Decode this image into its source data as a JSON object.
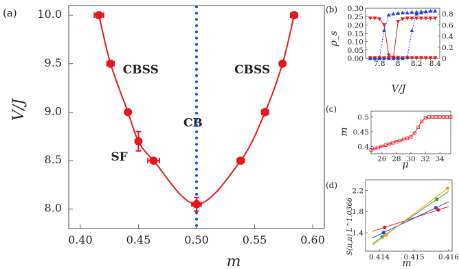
{
  "chart_data": [
    {
      "panel": "(a)",
      "type": "scatter",
      "xlabel": "m",
      "ylabel": "V/J",
      "xlim": [
        0.39,
        0.61
      ],
      "ylim": [
        7.8,
        10.1
      ],
      "xticks": [
        "0.40",
        "0.45",
        "0.50",
        "0.55",
        "0.60"
      ],
      "xtick_values": [
        0.4,
        0.45,
        0.5,
        0.55,
        0.6
      ],
      "yticks": [
        "8.0",
        "8.5",
        "9.0",
        "9.5",
        "10.0"
      ],
      "ytick_values": [
        8.0,
        8.5,
        9.0,
        9.5,
        10.0
      ],
      "regions": [
        {
          "label": "CBSS",
          "x": 0.452,
          "y": 9.4
        },
        {
          "label": "CBSS",
          "x": 0.548,
          "y": 9.4
        },
        {
          "label": "CB",
          "x": 0.497,
          "y": 8.85
        },
        {
          "label": "SF",
          "x": 0.4335,
          "y": 8.5
        }
      ],
      "vertical_line": {
        "x": 0.5,
        "style": "dotted",
        "color": "#1f4fd8"
      },
      "series": [
        {
          "color": "#e8161c",
          "points": [
            {
              "x": 0.416,
              "y": 10.0,
              "xerr": 0.004,
              "yerr": 0
            },
            {
              "x": 0.426,
              "y": 9.5,
              "xerr": 0.003,
              "yerr": 0
            },
            {
              "x": 0.441,
              "y": 9.0,
              "xerr": 0.002,
              "yerr": 0
            },
            {
              "x": 0.45,
              "y": 8.7,
              "xerr": 0.001,
              "yerr": 0.1
            },
            {
              "x": 0.463,
              "y": 8.5,
              "xerr": 0.005,
              "yerr": 0
            },
            {
              "x": 0.5,
              "y": 8.05,
              "xerr": 0.004,
              "yerr": 0.07
            },
            {
              "x": 0.538,
              "y": 8.5,
              "xerr": 0.003,
              "yerr": 0
            },
            {
              "x": 0.559,
              "y": 9.0,
              "xerr": 0.003,
              "yerr": 0
            },
            {
              "x": 0.574,
              "y": 9.5,
              "xerr": 0.002,
              "yerr": 0
            },
            {
              "x": 0.584,
              "y": 10.0,
              "xerr": 0.003,
              "yerr": 0
            }
          ]
        }
      ]
    },
    {
      "panel": "(b)",
      "type": "line",
      "xlabel": "V/J",
      "ylabel": "ρ_s",
      "xlim": [
        7.65,
        8.45
      ],
      "ylim": [
        0,
        0.3
      ],
      "xticks": [
        "7.8",
        "8",
        "8.2",
        "8.4"
      ],
      "xtick_values": [
        7.8,
        8.0,
        8.2,
        8.4
      ],
      "yticks": [
        "0.00",
        "0.05",
        "0.10",
        "0.15",
        "0.20",
        "0.25",
        "0.30"
      ],
      "ytick_values": [
        0,
        0.05,
        0.1,
        0.15,
        0.2,
        0.25,
        0.3
      ],
      "right_yticks": [
        "0",
        "0.2",
        "0.4",
        "0.6",
        "0.8"
      ],
      "right_ylim": [
        0,
        0.9
      ],
      "series": [
        {
          "color": "#e8161c",
          "marker": "triangle-down",
          "axis": "left",
          "x": [
            7.7,
            7.75,
            7.8,
            7.85,
            7.9,
            7.95,
            8.0,
            8.05,
            8.1,
            8.15,
            8.2,
            8.25,
            8.3,
            8.35,
            8.4
          ],
          "y": [
            0.24,
            0.24,
            0.235,
            0.2,
            0.02,
            0.005,
            0.003,
            0.002,
            0.002,
            0.002,
            0.002,
            0.002,
            0.002,
            0.002,
            0.002
          ]
        },
        {
          "color": "#e8161c",
          "marker": "triangle-down",
          "axis": "left",
          "x": [
            7.7,
            7.75,
            7.8,
            7.85,
            7.9,
            7.95,
            8.0,
            8.05,
            8.1,
            8.15,
            8.2,
            8.25,
            8.3,
            8.35,
            8.4
          ],
          "y": [
            0.002,
            0.002,
            0.002,
            0.002,
            0.002,
            0.002,
            0.22,
            0.235,
            0.24,
            0.24,
            0.24,
            0.24,
            0.24,
            0.24,
            0.24
          ]
        },
        {
          "color": "#1f3fd8",
          "marker": "triangle-up",
          "axis": "right",
          "x": [
            7.7,
            7.75,
            7.8,
            7.85,
            7.9,
            7.95,
            8.0,
            8.05,
            8.1,
            8.15,
            8.2,
            8.25,
            8.3,
            8.35,
            8.4
          ],
          "y": [
            0.0,
            0.0,
            0.01,
            0.5,
            0.78,
            0.8,
            0.81,
            0.82,
            0.82,
            0.83,
            0.83,
            0.84,
            0.84,
            0.85,
            0.85
          ]
        },
        {
          "color": "#1f3fd8",
          "marker": "triangle-up",
          "axis": "right",
          "x": [
            7.7,
            7.75,
            7.8,
            7.85,
            7.9,
            7.95,
            8.0,
            8.05,
            8.1,
            8.15,
            8.2,
            8.25,
            8.3,
            8.35,
            8.4
          ],
          "y": [
            0.0,
            0.0,
            0.0,
            0.0,
            0.0,
            0.0,
            0.0,
            0.0,
            0.02,
            0.5,
            0.8,
            0.82,
            0.84,
            0.85,
            0.85
          ]
        }
      ]
    },
    {
      "panel": "(c)",
      "type": "line",
      "xlabel": "μ",
      "ylabel": "m",
      "xlim": [
        24.5,
        35.5
      ],
      "ylim": [
        0.375,
        0.52
      ],
      "xticks": [
        "26",
        "28",
        "30",
        "32",
        "34"
      ],
      "xtick_values": [
        26,
        28,
        30,
        32,
        34
      ],
      "yticks": [
        "0.4",
        "0.45",
        "0.5"
      ],
      "ytick_values": [
        0.4,
        0.45,
        0.5
      ],
      "series": [
        {
          "color": "#e8161c",
          "marker": "square-open",
          "x": [
            24.5,
            25,
            25.5,
            26,
            26.5,
            27,
            27.5,
            28,
            28.5,
            29,
            29.5,
            30,
            30.5,
            31,
            31.5,
            32,
            32.5,
            33,
            33.5,
            34,
            34.5,
            35,
            35.5
          ],
          "y": [
            0.388,
            0.392,
            0.396,
            0.4,
            0.404,
            0.408,
            0.412,
            0.416,
            0.42,
            0.424,
            0.428,
            0.433,
            0.445,
            0.465,
            0.485,
            0.497,
            0.5,
            0.5,
            0.5,
            0.5,
            0.5,
            0.5,
            0.5
          ]
        }
      ]
    },
    {
      "panel": "(d)",
      "type": "scatter",
      "xlabel": "m",
      "ylabel": "S(π,π) L^1.0366",
      "xlim": [
        0.4136,
        0.4161
      ],
      "ylim": [
        1.05,
        2.4
      ],
      "xticks": [
        "0.414",
        "0.415",
        "0.416"
      ],
      "xtick_values": [
        0.414,
        0.415,
        0.416
      ],
      "yticks": [
        "1.4",
        "1.8",
        "2.2"
      ],
      "ytick_values": [
        1.4,
        1.8,
        2.2
      ],
      "series": [
        {
          "color": "#e8161c",
          "x": [
            0.41415,
            0.4157
          ],
          "y": [
            1.5,
            1.83
          ]
        },
        {
          "color": "#1f3fd8",
          "x": [
            0.41412,
            0.41563
          ],
          "y": [
            1.4,
            1.87
          ]
        },
        {
          "color": "#33a02c",
          "x": [
            0.41408,
            0.41566
          ],
          "y": [
            1.32,
            2.03
          ]
        },
        {
          "color": "#f39c12",
          "x": [
            0.4142,
            0.41597
          ],
          "y": [
            1.36,
            2.24
          ]
        }
      ]
    }
  ]
}
